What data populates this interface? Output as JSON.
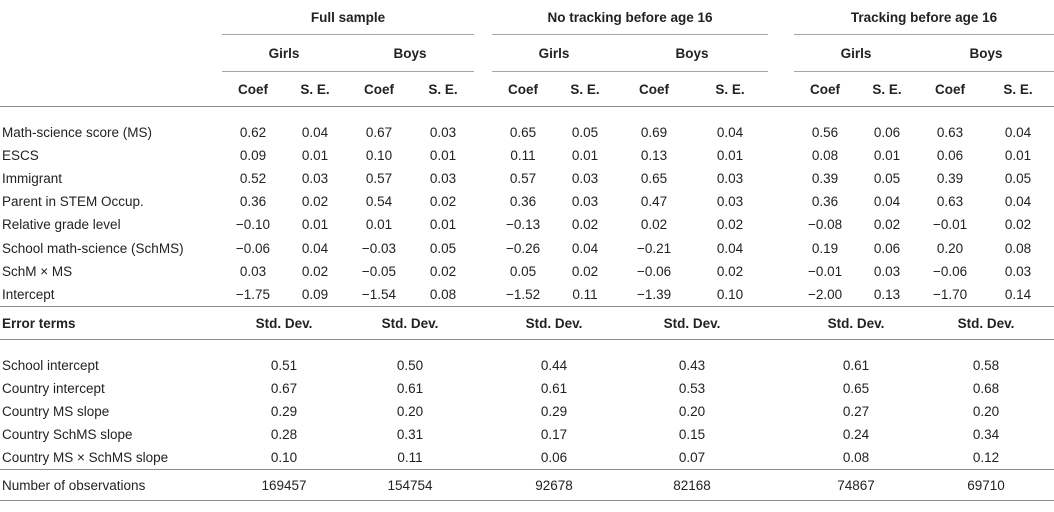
{
  "groups": [
    "Full sample",
    "No tracking before age 16",
    "Tracking before age 16"
  ],
  "sexes": [
    "Girls",
    "Boys"
  ],
  "coef_label": "Coef",
  "se_label": "S. E.",
  "rows": [
    {
      "label": "Math-science score (MS)",
      "vals": [
        "0.62",
        "0.04",
        "0.67",
        "0.03",
        "0.65",
        "0.05",
        "0.69",
        "0.04",
        "0.56",
        "0.06",
        "0.63",
        "0.04"
      ]
    },
    {
      "label": "ESCS",
      "vals": [
        "0.09",
        "0.01",
        "0.10",
        "0.01",
        "0.11",
        "0.01",
        "0.13",
        "0.01",
        "0.08",
        "0.01",
        "0.06",
        "0.01"
      ]
    },
    {
      "label": "Immigrant",
      "vals": [
        "0.52",
        "0.03",
        "0.57",
        "0.03",
        "0.57",
        "0.03",
        "0.65",
        "0.03",
        "0.39",
        "0.05",
        "0.39",
        "0.05"
      ]
    },
    {
      "label": "Parent in STEM Occup.",
      "vals": [
        "0.36",
        "0.02",
        "0.54",
        "0.02",
        "0.36",
        "0.03",
        "0.47",
        "0.03",
        "0.36",
        "0.04",
        "0.63",
        "0.04"
      ]
    },
    {
      "label": "Relative grade level",
      "vals": [
        "−0.10",
        "0.01",
        "0.01",
        "0.01",
        "−0.13",
        "0.02",
        "0.02",
        "0.02",
        "−0.08",
        "0.02",
        "−0.01",
        "0.02"
      ]
    },
    {
      "label": "School math-science (SchMS)",
      "vals": [
        "−0.06",
        "0.04",
        "−0.03",
        "0.05",
        "−0.26",
        "0.04",
        "−0.21",
        "0.04",
        "0.19",
        "0.06",
        "0.20",
        "0.08"
      ]
    },
    {
      "label": "SchM × MS",
      "vals": [
        "0.03",
        "0.02",
        "−0.05",
        "0.02",
        "0.05",
        "0.02",
        "−0.06",
        "0.02",
        "−0.01",
        "0.03",
        "−0.06",
        "0.03"
      ]
    },
    {
      "label": "Intercept",
      "vals": [
        "−1.75",
        "0.09",
        "−1.54",
        "0.08",
        "−1.52",
        "0.11",
        "−1.39",
        "0.10",
        "−2.00",
        "0.13",
        "−1.70",
        "0.14"
      ]
    }
  ],
  "error_title": "Error terms",
  "std_label": "Std. Dev.",
  "error_rows": [
    {
      "label": "School intercept",
      "vals": [
        "0.51",
        "0.50",
        "0.44",
        "0.43",
        "0.61",
        "0.58"
      ]
    },
    {
      "label": "Country intercept",
      "vals": [
        "0.67",
        "0.61",
        "0.61",
        "0.53",
        "0.65",
        "0.68"
      ]
    },
    {
      "label": "Country MS slope",
      "vals": [
        "0.29",
        "0.20",
        "0.29",
        "0.20",
        "0.27",
        "0.20"
      ]
    },
    {
      "label": "Country SchMS slope",
      "vals": [
        "0.28",
        "0.31",
        "0.17",
        "0.15",
        "0.24",
        "0.34"
      ]
    },
    {
      "label": "Country MS × SchMS slope",
      "vals": [
        "0.10",
        "0.11",
        "0.06",
        "0.07",
        "0.08",
        "0.12"
      ]
    }
  ],
  "obs_label": "Number of observations",
  "obs_vals": [
    "169457",
    "154754",
    "92678",
    "82168",
    "74867",
    "69710"
  ]
}
